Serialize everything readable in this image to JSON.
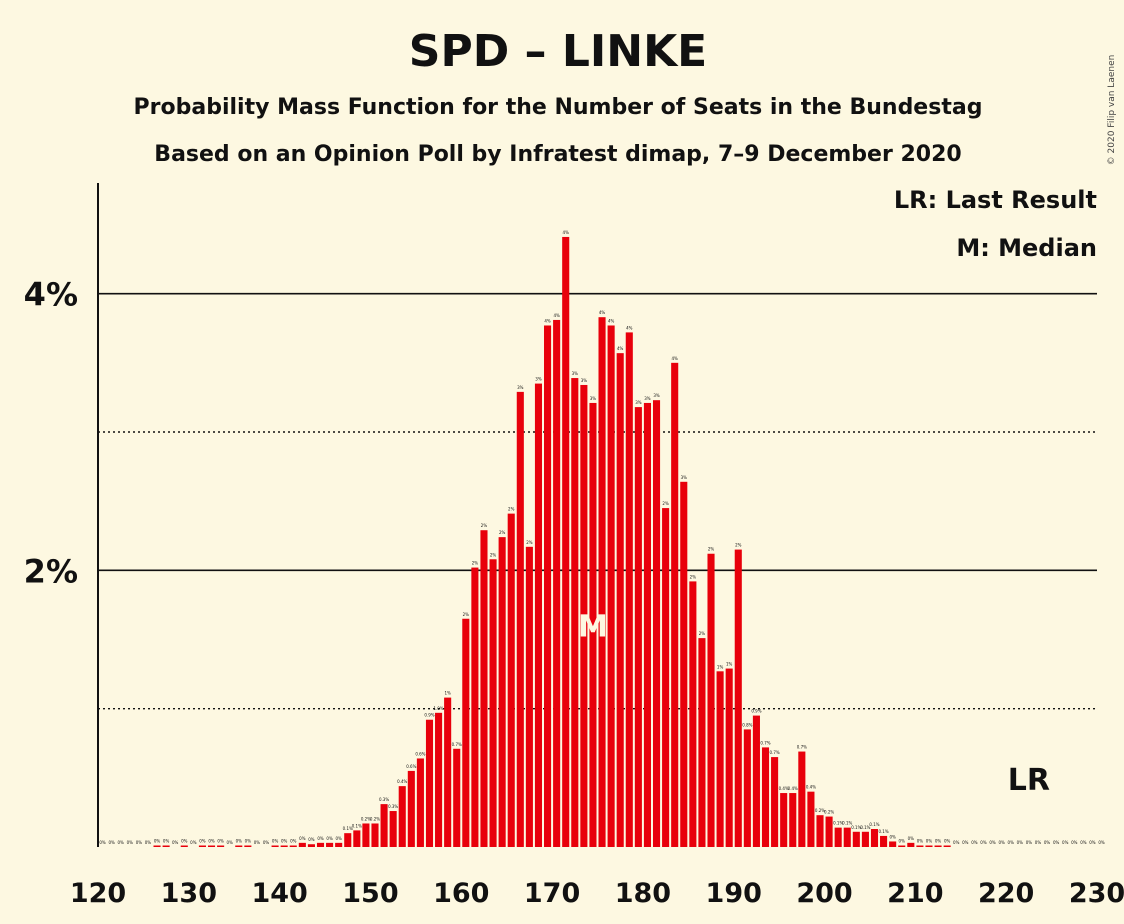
{
  "chart_data": {
    "type": "bar",
    "title": "SPD – LINKE",
    "subtitle_1": "Probability Mass Function for the Number of Seats in the Bundestag",
    "subtitle_2": "Based on an Opinion Poll by Infratest dimap, 7–9 December 2020",
    "copyright": "© 2020 Filip van Laenen",
    "legend": {
      "lr": "LR: Last Result",
      "m": "M: Median"
    },
    "median_label": "M",
    "last_result_label": "LR",
    "median_seat": 174,
    "last_result_seat": 222,
    "xlim": [
      120,
      230
    ],
    "ylim": [
      0,
      4.8
    ],
    "x_ticks": [
      "120",
      "130",
      "140",
      "150",
      "160",
      "170",
      "180",
      "190",
      "200",
      "210",
      "220",
      "230"
    ],
    "y_ticks": [
      {
        "value": 2,
        "label": "2%"
      },
      {
        "value": 4,
        "label": "4%"
      }
    ],
    "dotted_lines": [
      1,
      3
    ],
    "bar_color": "#e8000b",
    "start_seat": 120,
    "values": [
      0,
      0,
      0,
      0,
      0,
      0,
      0.01,
      0.01,
      0,
      0.01,
      0,
      0.01,
      0.01,
      0.01,
      0,
      0.01,
      0.01,
      0,
      0,
      0.01,
      0.01,
      0.01,
      0.03,
      0.02,
      0.03,
      0.03,
      0.03,
      0.1,
      0.12,
      0.17,
      0.17,
      0.31,
      0.26,
      0.44,
      0.55,
      0.64,
      0.92,
      0.97,
      1.08,
      0.71,
      1.65,
      2.02,
      2.29,
      2.08,
      2.24,
      2.41,
      3.29,
      2.17,
      3.35,
      3.77,
      3.81,
      4.41,
      3.39,
      3.34,
      3.21,
      3.83,
      3.77,
      3.57,
      3.72,
      3.18,
      3.21,
      3.23,
      2.45,
      3.5,
      2.64,
      1.92,
      1.51,
      2.12,
      1.27,
      1.29,
      2.15,
      0.85,
      0.95,
      0.72,
      0.65,
      0.39,
      0.39,
      0.69,
      0.4,
      0.23,
      0.22,
      0.14,
      0.14,
      0.11,
      0.11,
      0.13,
      0.08,
      0.04,
      0.01,
      0.03,
      0.01,
      0.01,
      0.01,
      0.01,
      0,
      0,
      0,
      0,
      0,
      0,
      0,
      0,
      0,
      0,
      0,
      0,
      0,
      0,
      0,
      0,
      0
    ]
  }
}
